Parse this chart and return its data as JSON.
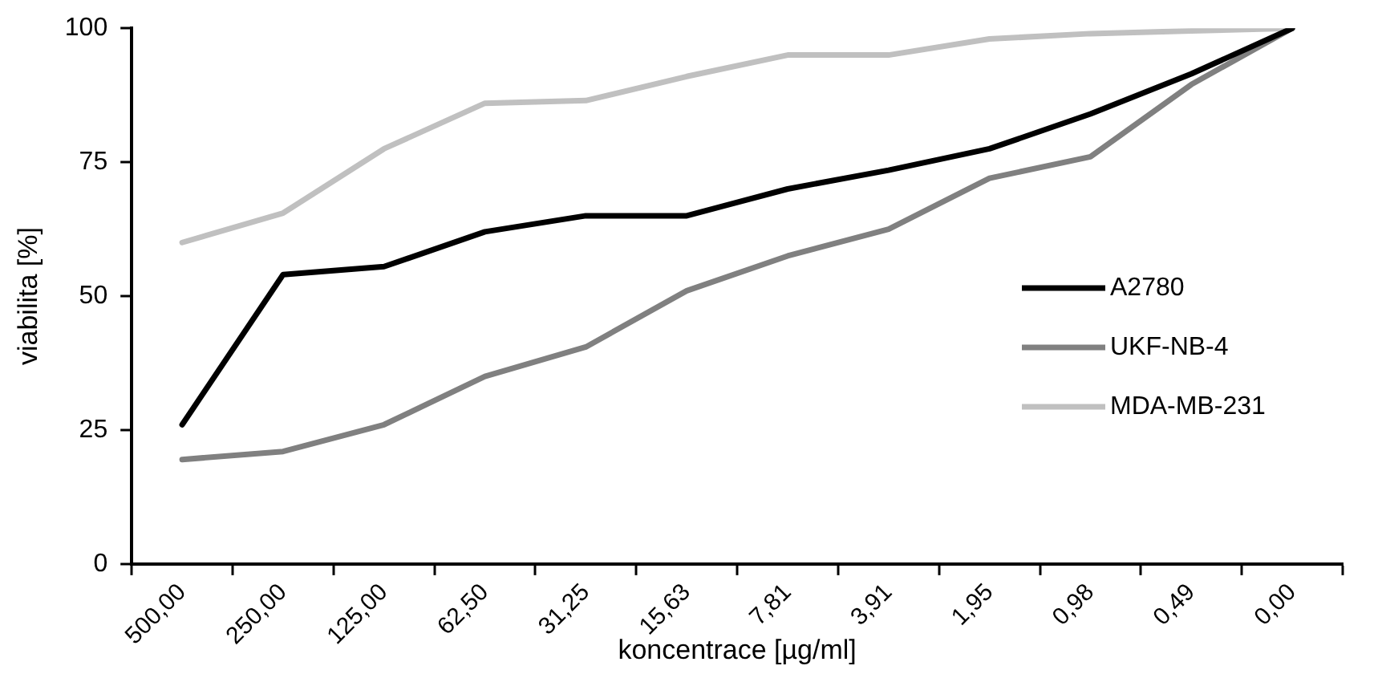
{
  "chart_data": {
    "type": "line",
    "xlabel": "koncentrace [µg/ml]",
    "ylabel": "viabilita [%]",
    "categories": [
      "500,00",
      "250,00",
      "125,00",
      "62,50",
      "31,25",
      "15,63",
      "7,81",
      "3,91",
      "1,95",
      "0,98",
      "0,49",
      "0,00"
    ],
    "series": [
      {
        "name": "A2780",
        "color": "#000000",
        "values": [
          26,
          54,
          55.5,
          62,
          65,
          65,
          70,
          73.5,
          77.5,
          84,
          91.5,
          100
        ]
      },
      {
        "name": "UKF-NB-4",
        "color": "#808080",
        "values": [
          19.5,
          21,
          26,
          35,
          40.5,
          51,
          57.5,
          62.5,
          72,
          76,
          89.5,
          100
        ]
      },
      {
        "name": "MDA-MB-231",
        "color": "#c0c0c0",
        "values": [
          60,
          65.5,
          77.5,
          86,
          86.5,
          91,
          95,
          95,
          98,
          99,
          99.5,
          100
        ]
      }
    ],
    "ylim": [
      0,
      100
    ],
    "yticks": [
      0,
      25,
      50,
      75,
      100
    ],
    "grid": false,
    "legend": "right",
    "marker": "none",
    "line_style": "solid"
  }
}
